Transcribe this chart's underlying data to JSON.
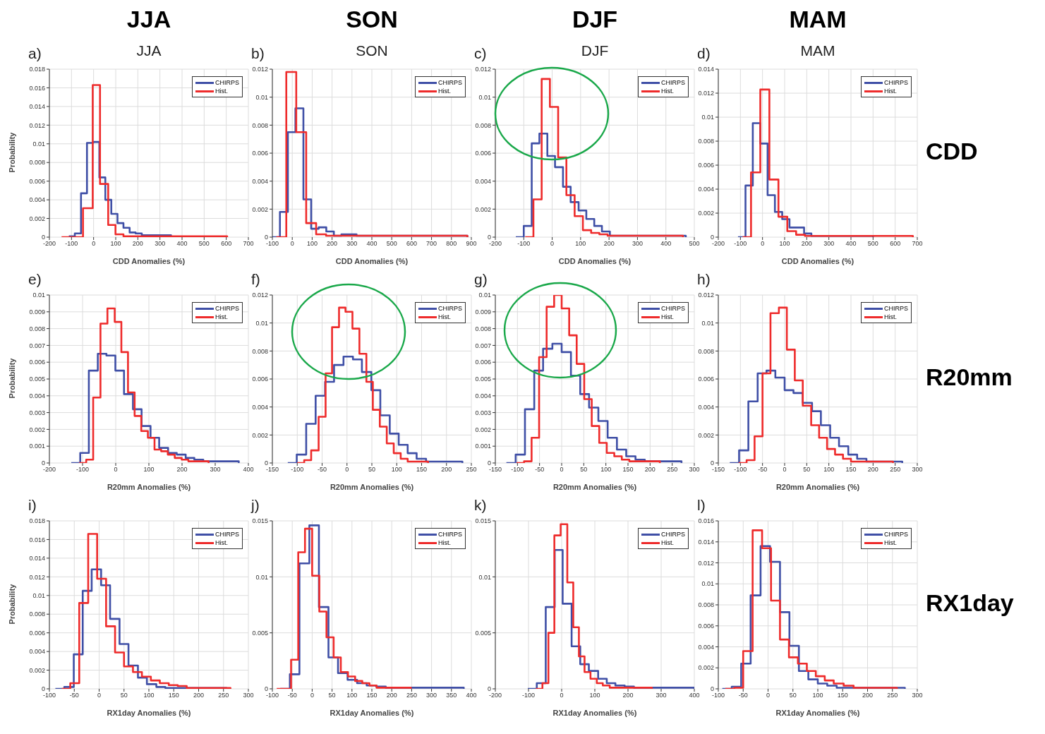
{
  "chart_data": [
    {
      "type": "step",
      "title": "a)",
      "subtitle": "JJA",
      "annotations": [
        "JJA"
      ],
      "xlabel": "CDD Anomalies (%)",
      "ylabel": "Probability",
      "xlim": [
        -200,
        700
      ],
      "xticks": [
        -200,
        -100,
        0,
        100,
        200,
        300,
        400,
        500,
        600,
        700
      ],
      "ylim": [
        0,
        0.018
      ],
      "yticks": [
        0,
        0.002,
        0.004,
        0.006,
        0.008,
        0.01,
        0.012,
        0.014,
        0.016,
        0.018
      ],
      "grid": true,
      "legend": "top right",
      "series": [
        {
          "name": "CHIRPS",
          "color": "#3f4fa6",
          "x": [
            -112,
            -85,
            -57,
            -30,
            -2,
            26,
            53,
            80,
            108,
            135,
            163,
            190,
            218,
            350
          ],
          "values": [
            0.0001,
            0.0004,
            0.0047,
            0.0101,
            0.0102,
            0.0064,
            0.004,
            0.0025,
            0.0015,
            0.001,
            0.0005,
            0.0004,
            0.0002,
            0
          ]
        },
        {
          "name": "Hist.",
          "color": "#ee2b2b",
          "x": [
            -145,
            -48,
            -4,
            29,
            66,
            99,
            135,
            604
          ],
          "values": [
            0,
            0.0031,
            0.0163,
            0.0057,
            0.0013,
            0.0003,
            0.0001,
            0
          ]
        }
      ]
    },
    {
      "type": "step",
      "title": "b)",
      "subtitle": "SON",
      "annotations": [
        "SON"
      ],
      "xlabel": "CDD Anomalies (%)",
      "xlim": [
        -100,
        900
      ],
      "xticks": [
        -100,
        0,
        100,
        200,
        300,
        400,
        500,
        600,
        700,
        800,
        900
      ],
      "ylim": [
        0,
        0.012
      ],
      "yticks": [
        0,
        0.002,
        0.004,
        0.006,
        0.008,
        0.01,
        0.012
      ],
      "grid": true,
      "legend": "top right",
      "series": [
        {
          "name": "CHIRPS",
          "color": "#3f4fa6",
          "x": [
            -100,
            -62,
            -22,
            16,
            56,
            95,
            133,
            171,
            209,
            247,
            323,
            880
          ],
          "values": [
            0,
            0.0018,
            0.0075,
            0.0092,
            0.0027,
            0.0006,
            0.0007,
            0.0004,
            0.0001,
            0.0002,
            0.0001,
            0
          ]
        },
        {
          "name": "Hist.",
          "color": "#ee2b2b",
          "x": [
            -80,
            -30,
            20,
            70,
            120,
            170,
            880
          ],
          "values": [
            0,
            0.0118,
            0.0075,
            0.001,
            0.0002,
            0.0001,
            0
          ]
        }
      ]
    },
    {
      "type": "step",
      "title": "c)",
      "subtitle": "DJF",
      "annotations": [
        "DJF"
      ],
      "xlabel": "CDD Anomalies (%)",
      "xlim": [
        -200,
        500
      ],
      "xticks": [
        -200,
        -100,
        0,
        100,
        200,
        300,
        400,
        500
      ],
      "ylim": [
        0,
        0.012
      ],
      "yticks": [
        0,
        0.002,
        0.004,
        0.006,
        0.008,
        0.01,
        0.012
      ],
      "grid": true,
      "legend": "top right",
      "series": [
        {
          "name": "CHIRPS",
          "color": "#3f4fa6",
          "x": [
            -128,
            -100,
            -72,
            -45,
            -17,
            10,
            38,
            65,
            93,
            120,
            148,
            175,
            203,
            470
          ],
          "values": [
            0,
            0.0008,
            0.0067,
            0.0074,
            0.0058,
            0.005,
            0.0036,
            0.0025,
            0.0019,
            0.0013,
            0.0008,
            0.0004,
            0.0001,
            0
          ]
        },
        {
          "name": "Hist.",
          "color": "#ee2b2b",
          "x": [
            -95,
            -66,
            -37,
            -8,
            21,
            50,
            79,
            108,
            137,
            166,
            195,
            460
          ],
          "values": [
            0,
            0.0027,
            0.0113,
            0.0093,
            0.0057,
            0.003,
            0.0015,
            0.0005,
            0.0003,
            0.0002,
            0.0001,
            0
          ]
        }
      ]
    },
    {
      "type": "step",
      "title": "d)",
      "subtitle": "MAM",
      "annotations": [
        "MAM",
        "CDD"
      ],
      "xlabel": "CDD Anomalies (%)",
      "xlim": [
        -200,
        700
      ],
      "xticks": [
        -200,
        -100,
        0,
        100,
        200,
        300,
        400,
        500,
        600,
        700
      ],
      "ylim": [
        0,
        0.014
      ],
      "yticks": [
        0,
        0.002,
        0.004,
        0.006,
        0.008,
        0.01,
        0.012,
        0.014
      ],
      "grid": true,
      "legend": "top right",
      "series": [
        {
          "name": "CHIRPS",
          "color": "#3f4fa6",
          "x": [
            -111,
            -77,
            -44,
            -10,
            23,
            56,
            89,
            122,
            155,
            188,
            221,
            500
          ],
          "values": [
            0,
            0.0043,
            0.0095,
            0.0078,
            0.0035,
            0.0021,
            0.0015,
            0.0008,
            0.0008,
            0.0003,
            0.0001,
            0
          ]
        },
        {
          "name": "Hist.",
          "color": "#ee2b2b",
          "x": [
            -90,
            -52,
            -10,
            31,
            72,
            112,
            152,
            192,
            680
          ],
          "values": [
            0,
            0.0054,
            0.0123,
            0.0048,
            0.0017,
            0.0005,
            0.0002,
            0.0001,
            0
          ]
        }
      ]
    },
    {
      "type": "step",
      "title": "e)",
      "xlabel": "R20mm Anomalies (%)",
      "ylabel": "Probability",
      "xlim": [
        -200,
        400
      ],
      "xticks": [
        -200,
        -100,
        0,
        100,
        200,
        300,
        400
      ],
      "ylim": [
        0,
        0.01
      ],
      "yticks": [
        0,
        0.001,
        0.002,
        0.003,
        0.004,
        0.005,
        0.006,
        0.007,
        0.008,
        0.009,
        0.01
      ],
      "grid": true,
      "legend": "top right",
      "series": [
        {
          "name": "CHIRPS",
          "color": "#3f4fa6",
          "x": [
            -134,
            -107,
            -81,
            -54,
            -28,
            -1,
            25,
            52,
            78,
            105,
            131,
            158,
            184,
            211,
            237,
            264,
            371
          ],
          "values": [
            0,
            0.0006,
            0.0055,
            0.0065,
            0.0064,
            0.0055,
            0.0041,
            0.0032,
            0.0022,
            0.0015,
            0.0009,
            0.0006,
            0.0005,
            0.0003,
            0.0002,
            0.0001,
            0
          ]
        },
        {
          "name": "Hist.",
          "color": "#ee2b2b",
          "x": [
            -110,
            -89,
            -68,
            -46,
            -25,
            -3,
            17,
            37,
            57,
            77,
            97,
            117,
            137,
            157,
            178,
            199,
            219,
            280
          ],
          "values": [
            0,
            0.0002,
            0.0039,
            0.0083,
            0.0092,
            0.0084,
            0.0066,
            0.0042,
            0.0028,
            0.0019,
            0.0015,
            0.0008,
            0.0007,
            0.0005,
            0.0003,
            0.0002,
            0.0001,
            0
          ]
        }
      ]
    },
    {
      "type": "step",
      "title": "f)",
      "xlabel": "R20mm Anomalies (%)",
      "xlim": [
        -150,
        250
      ],
      "xticks": [
        -150,
        -100,
        -50,
        0,
        50,
        100,
        150,
        200,
        250
      ],
      "ylim": [
        0,
        0.012
      ],
      "yticks": [
        0,
        0.002,
        0.004,
        0.006,
        0.008,
        0.01,
        0.012
      ],
      "grid": true,
      "legend": "top right",
      "series": [
        {
          "name": "CHIRPS",
          "color": "#3f4fa6",
          "x": [
            -119,
            -101,
            -82,
            -63,
            -44,
            -26,
            -7,
            12,
            30,
            49,
            67,
            86,
            104,
            122,
            140,
            159,
            232
          ],
          "values": [
            0,
            0.0006,
            0.0028,
            0.0048,
            0.0058,
            0.007,
            0.0076,
            0.0074,
            0.0065,
            0.0052,
            0.0034,
            0.0021,
            0.0013,
            0.0007,
            0.0003,
            0.0001,
            0
          ]
        },
        {
          "name": "Hist.",
          "color": "#ee2b2b",
          "x": [
            -100,
            -86,
            -72,
            -57,
            -43,
            -30,
            -16,
            -3,
            11,
            25,
            39,
            52,
            66,
            80,
            94,
            108,
            122,
            163
          ],
          "values": [
            0,
            0.0002,
            0.0009,
            0.0033,
            0.0064,
            0.0097,
            0.0111,
            0.0108,
            0.0096,
            0.0078,
            0.0058,
            0.0038,
            0.0026,
            0.0014,
            0.0007,
            0.0003,
            0.0001,
            0
          ]
        }
      ]
    },
    {
      "type": "step",
      "title": "g)",
      "xlabel": "R20mm Anomalies (%)",
      "xlim": [
        -150,
        300
      ],
      "xticks": [
        -150,
        -100,
        -50,
        0,
        50,
        100,
        150,
        200,
        250,
        300
      ],
      "ylim": [
        0,
        0.01
      ],
      "yticks": [
        0,
        0.001,
        0.002,
        0.003,
        0.004,
        0.005,
        0.006,
        0.007,
        0.008,
        0.009,
        0.01
      ],
      "grid": true,
      "legend": "top right",
      "series": [
        {
          "name": "CHIRPS",
          "color": "#3f4fa6",
          "x": [
            -125,
            -104,
            -83,
            -62,
            -42,
            -21,
            0,
            21,
            42,
            62,
            83,
            104,
            125,
            146,
            167,
            188,
            271
          ],
          "values": [
            0,
            0.0005,
            0.0032,
            0.0055,
            0.0068,
            0.0071,
            0.0066,
            0.0052,
            0.0041,
            0.0033,
            0.0025,
            0.0015,
            0.0008,
            0.0004,
            0.0002,
            0.0001,
            0
          ]
        },
        {
          "name": "Hist.",
          "color": "#ee2b2b",
          "x": [
            -102,
            -85,
            -68,
            -51,
            -34,
            -17,
            0,
            17,
            34,
            51,
            68,
            85,
            102,
            119,
            136,
            153,
            222
          ],
          "values": [
            0,
            0.0001,
            0.0015,
            0.0063,
            0.0093,
            0.01,
            0.0092,
            0.0076,
            0.0059,
            0.0038,
            0.0022,
            0.0012,
            0.0006,
            0.0004,
            0.0002,
            0.0001,
            0
          ]
        }
      ]
    },
    {
      "type": "step",
      "title": "h)",
      "annotations": [
        "R20mm"
      ],
      "xlabel": "R20mm Anomalies (%)",
      "xlim": [
        -150,
        300
      ],
      "xticks": [
        -150,
        -100,
        -50,
        0,
        50,
        100,
        150,
        200,
        250,
        300
      ],
      "ylim": [
        0,
        0.012
      ],
      "yticks": [
        0,
        0.002,
        0.004,
        0.006,
        0.008,
        0.01,
        0.012
      ],
      "grid": true,
      "legend": "top right",
      "series": [
        {
          "name": "CHIRPS",
          "color": "#3f4fa6",
          "x": [
            -124,
            -103,
            -82,
            -61,
            -41,
            -21,
            0,
            20,
            41,
            62,
            82,
            103,
            123,
            144,
            164,
            185,
            266
          ],
          "values": [
            0,
            0.0009,
            0.0044,
            0.0064,
            0.0066,
            0.0061,
            0.0052,
            0.005,
            0.0043,
            0.0037,
            0.0027,
            0.0018,
            0.0012,
            0.0006,
            0.0003,
            0.0001,
            0
          ]
        },
        {
          "name": "Hist.",
          "color": "#ee2b2b",
          "x": [
            -104,
            -86,
            -68,
            -50,
            -32,
            -13,
            5,
            23,
            41,
            60,
            78,
            96,
            114,
            132,
            150,
            245
          ],
          "values": [
            0,
            0.0002,
            0.0019,
            0.0064,
            0.0107,
            0.0111,
            0.0081,
            0.0059,
            0.0041,
            0.0027,
            0.0018,
            0.001,
            0.0006,
            0.0003,
            0.0001,
            0
          ]
        }
      ]
    },
    {
      "type": "step",
      "title": "i)",
      "xlabel": "RX1day Anomalies (%)",
      "ylabel": "Probability",
      "xlim": [
        -100,
        300
      ],
      "xticks": [
        -100,
        -50,
        0,
        50,
        100,
        150,
        200,
        250,
        300
      ],
      "ylim": [
        0,
        0.018
      ],
      "yticks": [
        0,
        0.002,
        0.004,
        0.006,
        0.008,
        0.01,
        0.012,
        0.014,
        0.016,
        0.018
      ],
      "grid": true,
      "legend": "top right",
      "series": [
        {
          "name": "CHIRPS",
          "color": "#3f4fa6",
          "x": [
            -88,
            -70,
            -51,
            -33,
            -15,
            4,
            22,
            41,
            59,
            78,
            96,
            115,
            133,
            256
          ],
          "values": [
            0,
            0.0002,
            0.0037,
            0.0105,
            0.0128,
            0.0111,
            0.0075,
            0.0048,
            0.0025,
            0.0012,
            0.0005,
            0.0002,
            0.0001,
            0
          ]
        },
        {
          "name": "Hist.",
          "color": "#ee2b2b",
          "x": [
            -75,
            -58,
            -40,
            -22,
            -4,
            14,
            32,
            50,
            68,
            86,
            104,
            122,
            140,
            158,
            176,
            264
          ],
          "values": [
            0,
            0.0006,
            0.0092,
            0.0166,
            0.0118,
            0.0067,
            0.0039,
            0.0024,
            0.0018,
            0.0013,
            0.0009,
            0.0006,
            0.0004,
            0.0003,
            0.0001,
            0
          ]
        }
      ]
    },
    {
      "type": "step",
      "title": "j)",
      "xlabel": "RX1day Anomalies (%)",
      "xlim": [
        -100,
        400
      ],
      "xticks": [
        -100,
        -50,
        0,
        50,
        100,
        150,
        200,
        250,
        300,
        350,
        400
      ],
      "ylim": [
        0,
        0.015
      ],
      "yticks": [
        0,
        0.005,
        0.01,
        0.015
      ],
      "grid": true,
      "legend": "top right",
      "series": [
        {
          "name": "CHIRPS",
          "color": "#3f4fa6",
          "x": [
            -80,
            -56,
            -32,
            -7,
            17,
            41,
            65,
            89,
            113,
            137,
            161,
            185,
            381
          ],
          "values": [
            0,
            0.0013,
            0.0112,
            0.0146,
            0.0073,
            0.0028,
            0.0014,
            0.0008,
            0.0005,
            0.0003,
            0.0002,
            0.0001,
            0
          ]
        },
        {
          "name": "Hist.",
          "color": "#ee2b2b",
          "x": [
            -89,
            -53,
            -35,
            -18,
            0,
            18,
            36,
            54,
            72,
            90,
            108,
            126,
            144,
            162,
            248
          ],
          "values": [
            0,
            0.0026,
            0.0122,
            0.0143,
            0.0101,
            0.0069,
            0.0046,
            0.0028,
            0.0015,
            0.0011,
            0.0007,
            0.0005,
            0.0003,
            0.0001,
            0
          ]
        }
      ]
    },
    {
      "type": "step",
      "title": "k)",
      "xlabel": "RX1day Anomalies (%)",
      "xlim": [
        -200,
        400
      ],
      "xticks": [
        -200,
        -100,
        0,
        100,
        200,
        300,
        400
      ],
      "ylim": [
        0,
        0.015
      ],
      "yticks": [
        0,
        0.005,
        0.01,
        0.015
      ],
      "grid": true,
      "legend": "top right",
      "series": [
        {
          "name": "CHIRPS",
          "color": "#3f4fa6",
          "x": [
            -102,
            -75,
            -48,
            -21,
            3,
            30,
            56,
            82,
            110,
            136,
            162,
            190,
            218,
            400
          ],
          "values": [
            0,
            0.0005,
            0.0073,
            0.0124,
            0.0076,
            0.0038,
            0.0022,
            0.0016,
            0.0009,
            0.0005,
            0.0003,
            0.0002,
            0.0001,
            0
          ]
        },
        {
          "name": "Hist.",
          "color": "#ee2b2b",
          "x": [
            -78,
            -58,
            -40,
            -22,
            -3,
            17,
            35,
            52,
            69,
            87,
            106,
            124,
            145,
            272
          ],
          "values": [
            0,
            0.0005,
            0.005,
            0.0137,
            0.0147,
            0.0095,
            0.0055,
            0.0029,
            0.0015,
            0.0009,
            0.0005,
            0.0003,
            0.0001,
            0
          ]
        }
      ]
    },
    {
      "type": "step",
      "title": "l)",
      "annotations": [
        "RX1day"
      ],
      "xlabel": "RX1day Anomalies (%)",
      "xlim": [
        -100,
        300
      ],
      "xticks": [
        -100,
        -50,
        0,
        50,
        100,
        150,
        200,
        250,
        300
      ],
      "ylim": [
        0,
        0.016
      ],
      "yticks": [
        0,
        0.002,
        0.004,
        0.006,
        0.008,
        0.01,
        0.012,
        0.014,
        0.016
      ],
      "grid": true,
      "legend": "top right",
      "series": [
        {
          "name": "CHIRPS",
          "color": "#3f4fa6",
          "x": [
            -92,
            -73,
            -54,
            -35,
            -15,
            4,
            24,
            43,
            62,
            81,
            100,
            119,
            138,
            275
          ],
          "values": [
            0,
            0.0002,
            0.0024,
            0.0089,
            0.0136,
            0.0121,
            0.0073,
            0.0041,
            0.0017,
            0.0009,
            0.0005,
            0.0003,
            0.0001,
            0
          ]
        },
        {
          "name": "Hist.",
          "color": "#ee2b2b",
          "x": [
            -86,
            -68,
            -50,
            -31,
            -12,
            6,
            24,
            42,
            60,
            78,
            96,
            114,
            132,
            152,
            172,
            259
          ],
          "values": [
            0,
            0.0001,
            0.0036,
            0.0151,
            0.0134,
            0.0084,
            0.0047,
            0.003,
            0.0024,
            0.0017,
            0.0012,
            0.0008,
            0.0005,
            0.0003,
            0.0001,
            0
          ]
        }
      ]
    }
  ]
}
